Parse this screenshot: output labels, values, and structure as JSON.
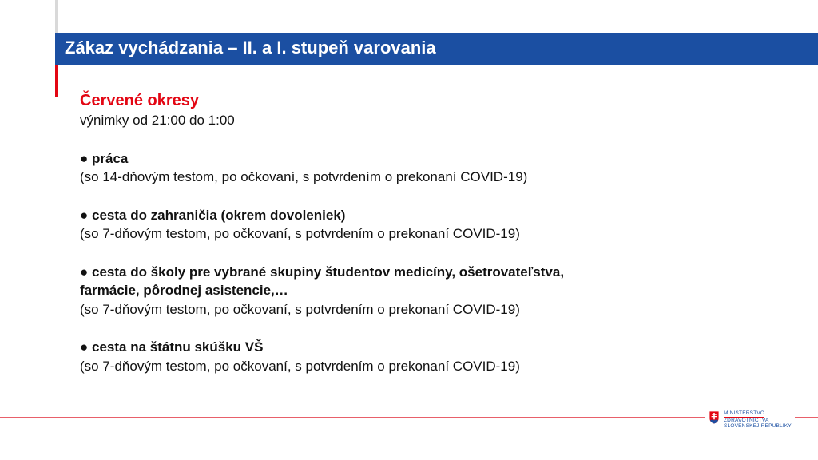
{
  "header": {
    "title": "Zákaz vychádzania – II. a I. stupeň varovania"
  },
  "content": {
    "heading": "Červené okresy",
    "subheading": "výnimky od 21:00 do 1:00",
    "items": [
      {
        "title": "● práca",
        "note": "(so 14-dňovým testom, po očkovaní, s potvrdením o prekonaní COVID-19)"
      },
      {
        "title": "● cesta do zahraničia (okrem dovoleniek)",
        "note": "(so 7-dňovým testom, po očkovaní, s potvrdením o prekonaní COVID-19)"
      },
      {
        "title": "● cesta do školy pre vybrané skupiny študentov medicíny, ošetrovateľstva,",
        "title2": "farmácie, pôrodnej asistencie,…",
        "note": "(so 7-dňovým testom, po očkovaní, s potvrdením o prekonaní COVID-19)"
      },
      {
        "title": "● cesta na štátnu skúšku VŠ",
        "note": "(so 7-dňovým testom, po očkovaní, s potvrdením o prekonaní COVID-19)"
      }
    ]
  },
  "logo": {
    "line1": "MINISTERSTVO",
    "line2": "ZDRAVOTNÍCTVA",
    "line3": "SLOVENSKEJ REPUBLIKY",
    "icon": "slovak-coat-of-arms-icon"
  },
  "colors": {
    "blue": "#1b4fa2",
    "red": "#e30613"
  }
}
